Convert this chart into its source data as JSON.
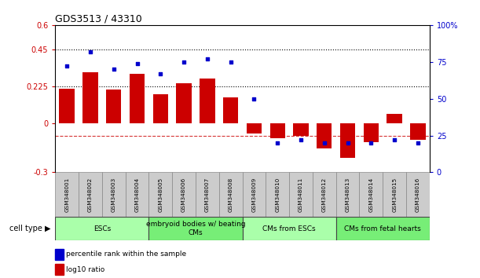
{
  "title": "GDS3513 / 43310",
  "samples": [
    "GSM348001",
    "GSM348002",
    "GSM348003",
    "GSM348004",
    "GSM348005",
    "GSM348006",
    "GSM348007",
    "GSM348008",
    "GSM348009",
    "GSM348010",
    "GSM348011",
    "GSM348012",
    "GSM348013",
    "GSM348014",
    "GSM348015",
    "GSM348016"
  ],
  "log10_ratio": [
    0.21,
    0.31,
    0.205,
    0.3,
    0.175,
    0.245,
    0.275,
    0.16,
    -0.065,
    -0.09,
    -0.075,
    -0.155,
    -0.21,
    -0.115,
    0.055,
    -0.1
  ],
  "percentile_rank": [
    72,
    82,
    70,
    74,
    67,
    75,
    77,
    75,
    50,
    20,
    22,
    20,
    20,
    20,
    22,
    20
  ],
  "bar_color": "#cc0000",
  "dot_color": "#0000cc",
  "ylim_left": [
    -0.3,
    0.6
  ],
  "ylim_right": [
    0,
    100
  ],
  "yticks_left": [
    -0.3,
    0.0,
    0.225,
    0.45,
    0.6
  ],
  "ytick_labels_left": [
    "-0.3",
    "0",
    "0.225",
    "0.45",
    "0.6"
  ],
  "yticks_right": [
    0,
    25,
    50,
    75,
    100
  ],
  "ytick_labels_right": [
    "0",
    "25",
    "50",
    "75",
    "100%"
  ],
  "hlines": [
    0.45,
    0.225
  ],
  "cell_type_groups": [
    {
      "label": "ESCs",
      "start": 0,
      "end": 4,
      "color": "#aaffaa"
    },
    {
      "label": "embryoid bodies w/ beating\nCMs",
      "start": 4,
      "end": 8,
      "color": "#77ee77"
    },
    {
      "label": "CMs from ESCs",
      "start": 8,
      "end": 12,
      "color": "#aaffaa"
    },
    {
      "label": "CMs from fetal hearts",
      "start": 12,
      "end": 16,
      "color": "#77ee77"
    }
  ],
  "legend_items": [
    {
      "label": "log10 ratio",
      "color": "#cc0000"
    },
    {
      "label": "percentile rank within the sample",
      "color": "#0000cc"
    }
  ],
  "cell_type_label": "cell type"
}
